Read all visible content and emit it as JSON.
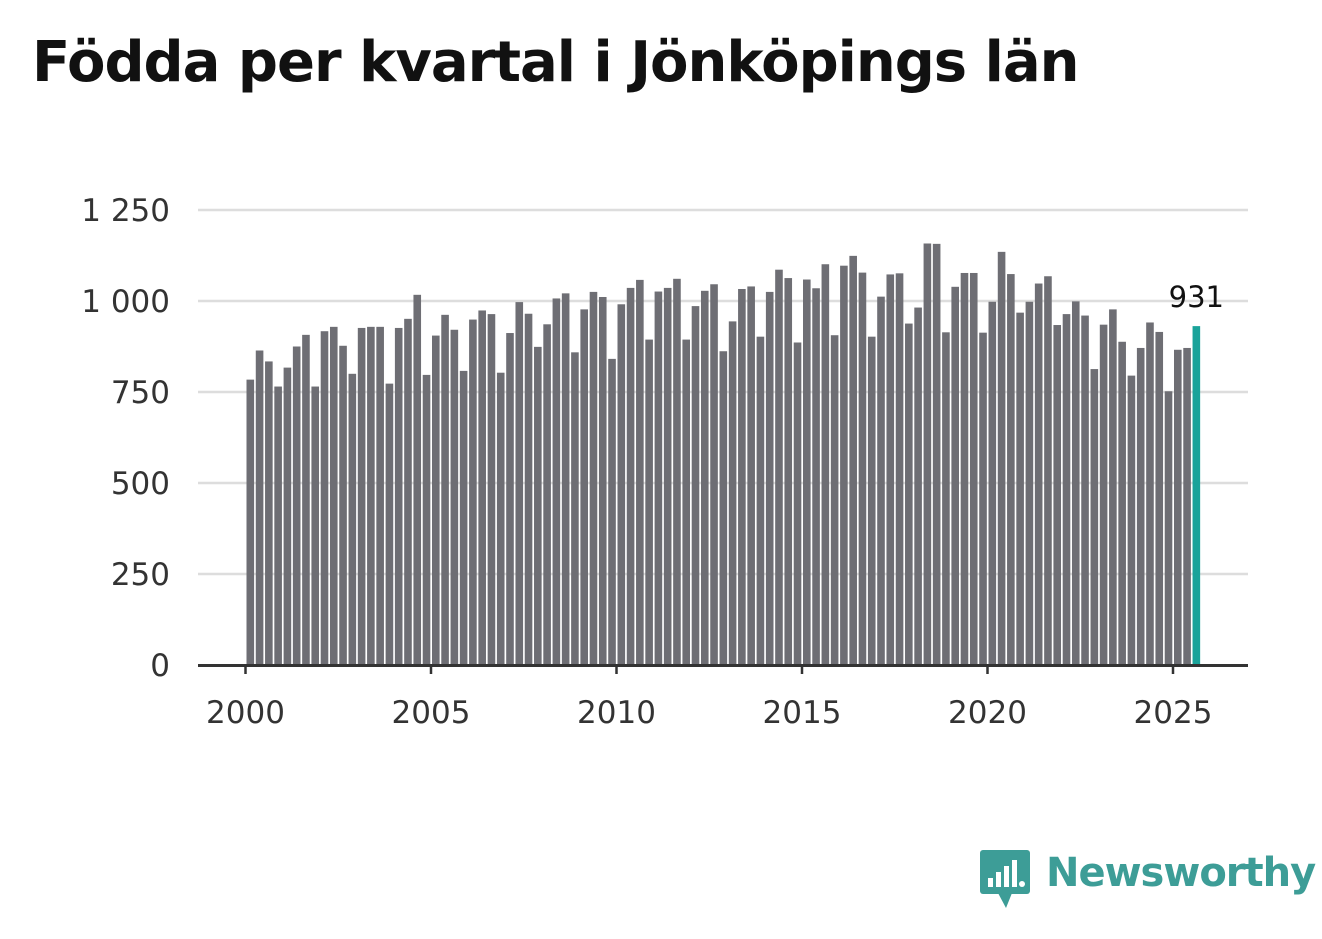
{
  "title": "Födda per kvartal i Jönköpings län",
  "brand": {
    "name": "Newsworthy",
    "color": "#3d9d97",
    "icon": "bar-chart-speech-bubble-icon"
  },
  "chart_data": {
    "type": "bar",
    "title": "Födda per kvartal i Jönköpings län",
    "xlabel": "",
    "ylabel": "",
    "ylim": [
      0,
      1250
    ],
    "yticks": [
      {
        "value": 0,
        "label": "0"
      },
      {
        "value": 250,
        "label": "250"
      },
      {
        "value": 500,
        "label": "500"
      },
      {
        "value": 750,
        "label": "750"
      },
      {
        "value": 1000,
        "label": "1 000"
      },
      {
        "value": 1250,
        "label": "1 250"
      }
    ],
    "xticks": [
      {
        "value": 2000,
        "label": "2000"
      },
      {
        "value": 2005,
        "label": "2005"
      },
      {
        "value": 2010,
        "label": "2010"
      },
      {
        "value": 2015,
        "label": "2015"
      },
      {
        "value": 2020,
        "label": "2020"
      },
      {
        "value": 2025,
        "label": "2025"
      }
    ],
    "start": {
      "year": 2000,
      "quarter": 1
    },
    "grid": true,
    "bar_color": "#6e6e74",
    "highlight_color": "#1aa39a",
    "highlight_last": true,
    "annotation": {
      "label": "931"
    },
    "values": [
      784,
      864,
      834,
      765,
      817,
      875,
      907,
      765,
      917,
      929,
      877,
      800,
      926,
      929,
      929,
      773,
      926,
      951,
      1017,
      797,
      905,
      962,
      921,
      808,
      949,
      974,
      964,
      803,
      912,
      997,
      965,
      874,
      936,
      1007,
      1021,
      859,
      977,
      1025,
      1011,
      841,
      991,
      1036,
      1058,
      894,
      1026,
      1036,
      1061,
      894,
      986,
      1028,
      1046,
      862,
      944,
      1033,
      1040,
      902,
      1025,
      1086,
      1063,
      886,
      1059,
      1035,
      1101,
      906,
      1097,
      1124,
      1078,
      902,
      1012,
      1073,
      1076,
      938,
      982,
      1158,
      1157,
      914,
      1039,
      1077,
      1077,
      913,
      998,
      1135,
      1074,
      968,
      998,
      1048,
      1068,
      934,
      964,
      999,
      960,
      813,
      935,
      977,
      888,
      795,
      871,
      941,
      915,
      752,
      866,
      871,
      931
    ]
  }
}
